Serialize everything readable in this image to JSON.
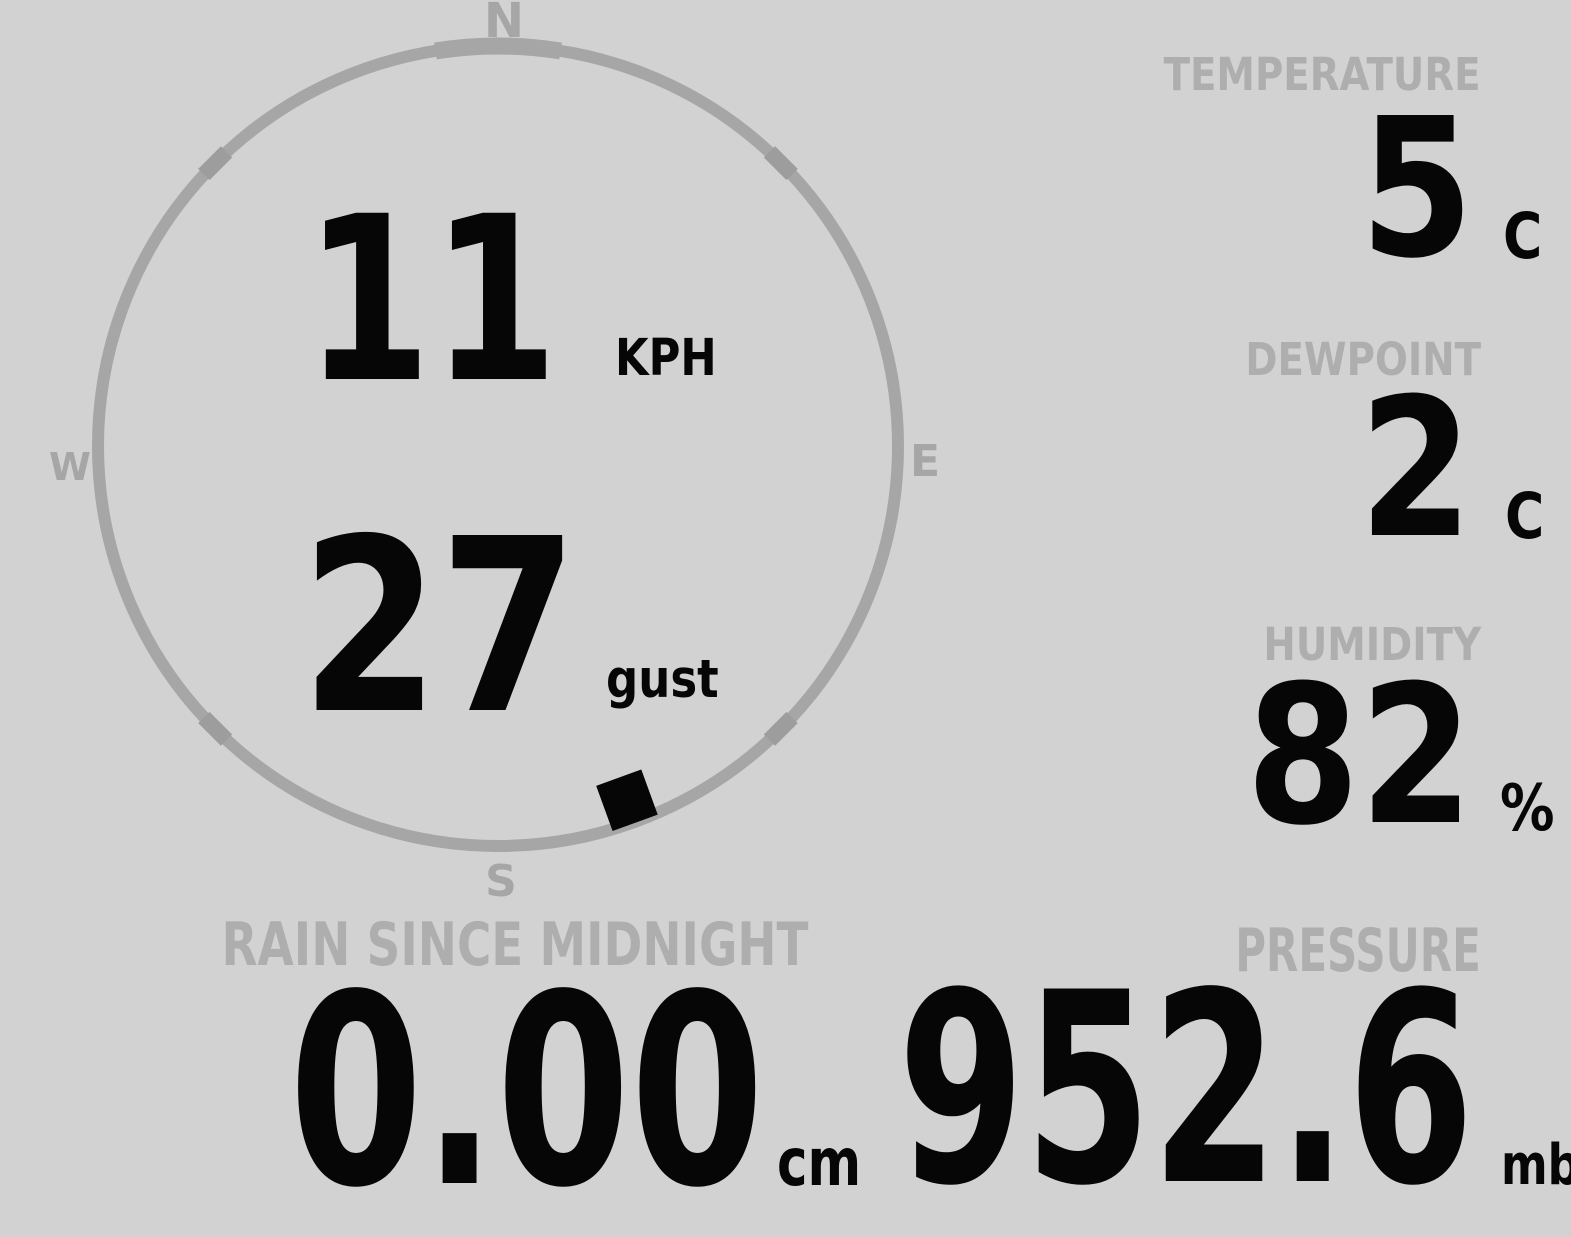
{
  "display": {
    "background_color": "#d2d2d2",
    "compass_gray": "#a6a6a6",
    "label_gray": "#aeaeae",
    "value_black": "#060606"
  },
  "compass": {
    "north_label": "N",
    "east_label": "E",
    "south_label": "S",
    "west_label": "W",
    "wind_speed": "11",
    "wind_speed_unit": "KPH",
    "wind_gust": "27",
    "wind_gust_label": "gust",
    "wind_direction_deg": 160
  },
  "temperature": {
    "label": "TEMPERATURE",
    "value": "5",
    "unit": "C"
  },
  "dewpoint": {
    "label": "DEWPOINT",
    "value": "2",
    "unit": "C"
  },
  "humidity": {
    "label": "HUMIDITY",
    "value": "82",
    "unit": "%"
  },
  "rain": {
    "label": "RAIN SINCE MIDNIGHT",
    "value": "0.00",
    "unit": "cm"
  },
  "pressure": {
    "label": "PRESSURE",
    "value": "952.6",
    "unit": "mb"
  }
}
